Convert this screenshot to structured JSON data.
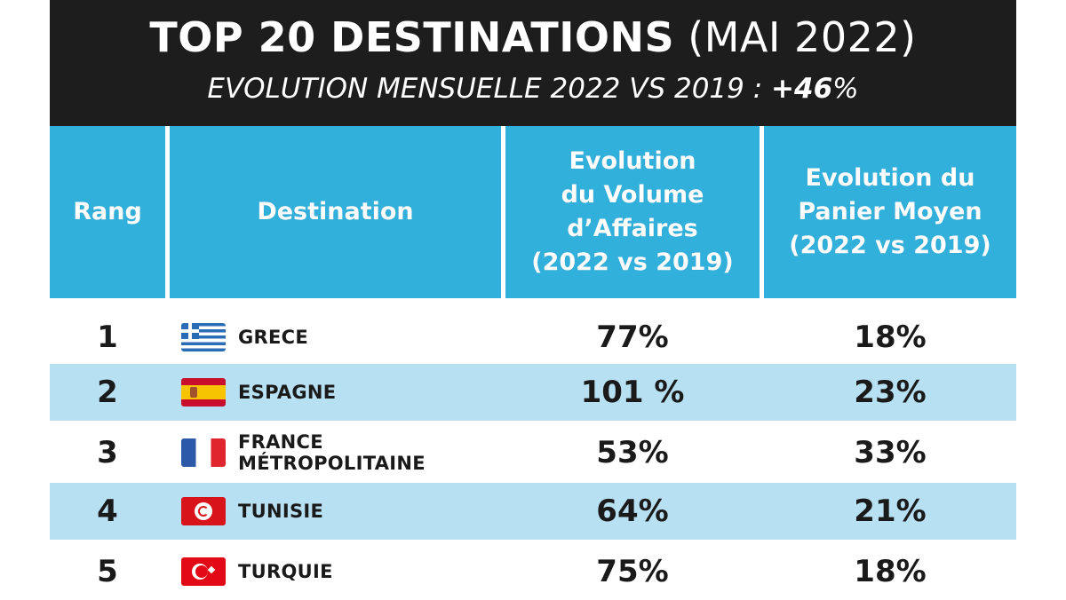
{
  "title": {
    "main": "TOP 20 DESTINATIONS",
    "sub": "(MAI 2022)",
    "line2_text": "EVOLUTION MENSUELLE 2022 VS 2019 :",
    "line2_value": "+46",
    "line2_unit": "%"
  },
  "headers": {
    "rang": "Rang",
    "destination": "Destination",
    "volume": [
      "Evolution",
      "du Volume",
      "d’Affaires",
      "(2022 vs 2019)"
    ],
    "panier": [
      "Evolution du",
      "Panier Moyen",
      "(2022 vs 2019)"
    ]
  },
  "rows": [
    {
      "rang": "1",
      "destination": "GRECE",
      "flag": "greece-flag-icon",
      "volume": "77%",
      "panier": "18%"
    },
    {
      "rang": "2",
      "destination": "ESPAGNE",
      "flag": "spain-flag-icon",
      "volume": "101 %",
      "panier": "23%"
    },
    {
      "rang": "3",
      "destination": "FRANCE MÉTROPOLITAINE",
      "flag": "france-flag-icon",
      "volume": "53%",
      "panier": "33%"
    },
    {
      "rang": "4",
      "destination": "TUNISIE",
      "flag": "tunisia-flag-icon",
      "volume": "64%",
      "panier": "21%"
    },
    {
      "rang": "5",
      "destination": "TURQUIE",
      "flag": "turkey-flag-icon",
      "volume": "75%",
      "panier": "18%"
    }
  ],
  "colors": {
    "title_bg": "#1d1d1d",
    "header_bg": "#32b0dc",
    "alt_row_bg": "#b8e0f3"
  }
}
